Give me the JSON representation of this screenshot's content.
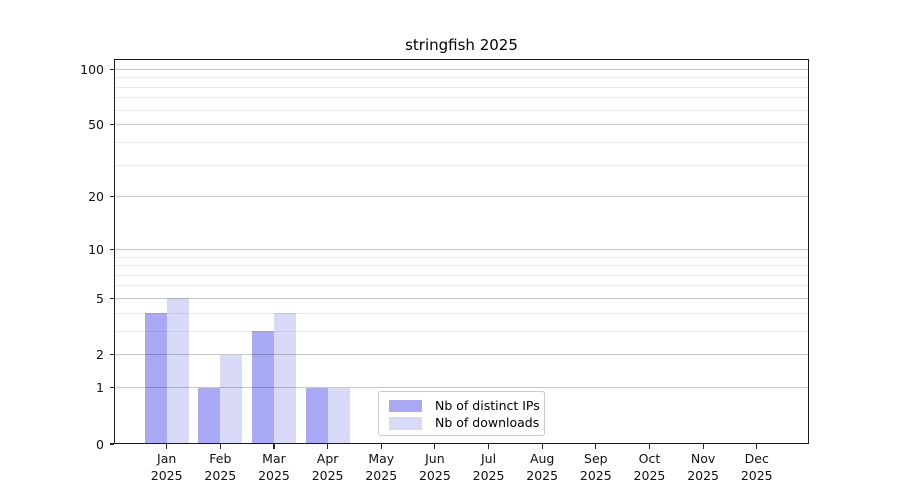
{
  "chart_data": {
    "type": "bar",
    "title": "stringfish 2025",
    "categories": [
      "Jan",
      "Feb",
      "Mar",
      "Apr",
      "May",
      "Jun",
      "Jul",
      "Aug",
      "Sep",
      "Oct",
      "Nov",
      "Dec"
    ],
    "x_tick_year": "2025",
    "series": [
      {
        "name": "Nb of distinct IPs",
        "color": "#a9a9f5",
        "values": [
          4,
          1,
          3,
          1,
          0,
          0,
          0,
          0,
          0,
          0,
          0,
          0
        ]
      },
      {
        "name": "Nb of downloads",
        "color": "#d9d9f8",
        "values": [
          5,
          2,
          4,
          1,
          0,
          0,
          0,
          0,
          0,
          0,
          0,
          0
        ]
      }
    ],
    "y_axis": {
      "scale": "log1p",
      "major_ticks": [
        0,
        1,
        2,
        5,
        10,
        20,
        50,
        100
      ],
      "minor_gridlines": [
        3,
        4,
        6,
        7,
        8,
        9,
        30,
        40,
        60,
        70,
        80,
        90
      ],
      "ylim": [
        0,
        113
      ]
    },
    "xlabel": "",
    "ylabel": "",
    "grid": "on",
    "legend_position": "lower-center"
  },
  "colors": {
    "background": "#ffffff",
    "major_grid": "rgba(0,0,0,0.22)",
    "minor_grid": "rgba(0,0,0,0.08)",
    "spine": "#1a1a1a",
    "tick": "#262626",
    "text": "#000000"
  }
}
